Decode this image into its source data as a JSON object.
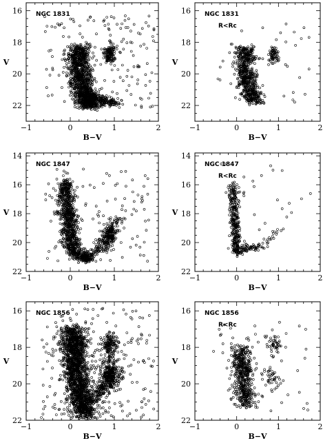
{
  "chart_data": [
    {
      "type": "scatter",
      "labels": [
        "NGC 1831"
      ],
      "xlabel": "B−V",
      "ylabel": "V",
      "xlim": [
        -1,
        2
      ],
      "ylim": [
        23,
        15.5
      ],
      "y_inverted": true,
      "xticks": [
        -1,
        0,
        1,
        2
      ],
      "yticks": [
        16,
        18,
        20,
        22
      ],
      "grid": false,
      "components": [
        {
          "kind": "band",
          "points": [
            [
              0.2,
              18.3
            ],
            [
              0.18,
              19.0
            ],
            [
              0.2,
              19.8
            ],
            [
              0.25,
              20.5
            ],
            [
              0.32,
              21.2
            ],
            [
              0.4,
              21.8
            ],
            [
              0.48,
              22.1
            ]
          ],
          "width": 0.13,
          "n": 1200
        },
        {
          "kind": "band",
          "points": [
            [
              0.3,
              21.3
            ],
            [
              0.55,
              21.5
            ],
            [
              0.8,
              21.7
            ],
            [
              1.05,
              21.9
            ]
          ],
          "width": 0.09,
          "n": 200
        },
        {
          "kind": "clump",
          "center": [
            0.9,
            18.75
          ],
          "spread": [
            0.07,
            0.3
          ],
          "n": 130
        },
        {
          "kind": "field",
          "xr": [
            -0.6,
            1.9
          ],
          "yr": [
            16.3,
            22.2
          ],
          "n": 160
        }
      ]
    },
    {
      "type": "scatter",
      "labels": [
        "NGC 1831",
        "R<Rc"
      ],
      "xlabel": "B−V",
      "ylabel": "V",
      "xlim": [
        -1,
        2
      ],
      "ylim": [
        23,
        15.5
      ],
      "y_inverted": true,
      "xticks": [
        -1,
        0,
        1,
        2
      ],
      "yticks": [
        16,
        18,
        20,
        22
      ],
      "grid": false,
      "components": [
        {
          "kind": "band",
          "points": [
            [
              0.2,
              18.3
            ],
            [
              0.18,
              19.0
            ],
            [
              0.2,
              19.8
            ],
            [
              0.26,
              20.5
            ],
            [
              0.33,
              21.2
            ],
            [
              0.42,
              21.8
            ]
          ],
          "width": 0.12,
          "n": 650
        },
        {
          "kind": "clump",
          "center": [
            0.88,
            18.8
          ],
          "spread": [
            0.06,
            0.28
          ],
          "n": 65
        },
        {
          "kind": "field",
          "xr": [
            -0.5,
            1.8
          ],
          "yr": [
            16.8,
            22.0
          ],
          "n": 45
        }
      ]
    },
    {
      "type": "scatter",
      "labels": [
        "NGC 1847"
      ],
      "xlabel": "B−V",
      "ylabel": "V",
      "xlim": [
        -1,
        2
      ],
      "ylim": [
        22,
        13.8
      ],
      "y_inverted": true,
      "xticks": [
        -1,
        0,
        1,
        2
      ],
      "yticks": [
        14,
        16,
        18,
        20,
        22
      ],
      "grid": false,
      "components": [
        {
          "kind": "band",
          "points": [
            [
              -0.1,
              15.8
            ],
            [
              -0.08,
              16.8
            ],
            [
              -0.05,
              17.8
            ],
            [
              -0.02,
              18.6
            ],
            [
              0.0,
              19.5
            ],
            [
              0.05,
              20.3
            ],
            [
              0.2,
              20.9
            ],
            [
              0.45,
              21.2
            ]
          ],
          "width": 0.1,
          "n": 950
        },
        {
          "kind": "band",
          "points": [
            [
              0.35,
              20.9
            ],
            [
              0.6,
              20.6
            ],
            [
              0.75,
              20.2
            ],
            [
              0.85,
              19.6
            ],
            [
              0.95,
              19.0
            ],
            [
              1.1,
              18.3
            ]
          ],
          "width": 0.09,
          "n": 200
        },
        {
          "kind": "clump",
          "center": [
            0.88,
            19.5
          ],
          "spread": [
            0.09,
            0.35
          ],
          "n": 110
        },
        {
          "kind": "field",
          "xr": [
            -0.6,
            1.8
          ],
          "yr": [
            14.8,
            21.4
          ],
          "n": 110
        }
      ]
    },
    {
      "type": "scatter",
      "labels": [
        "NGC 1847",
        "R<Rc"
      ],
      "xlabel": "B−V",
      "ylabel": "V",
      "xlim": [
        -1,
        2
      ],
      "ylim": [
        22,
        13.8
      ],
      "y_inverted": true,
      "xticks": [
        -1,
        0,
        1,
        2
      ],
      "yticks": [
        14,
        16,
        18,
        20,
        22
      ],
      "grid": false,
      "components": [
        {
          "kind": "band",
          "points": [
            [
              -0.1,
              15.9
            ],
            [
              -0.08,
              16.8
            ],
            [
              -0.06,
              17.8
            ],
            [
              -0.04,
              18.6
            ],
            [
              -0.02,
              19.4
            ],
            [
              0.0,
              20.2
            ],
            [
              0.05,
              20.9
            ]
          ],
          "width": 0.06,
          "n": 330
        },
        {
          "kind": "band",
          "points": [
            [
              0.05,
              20.5
            ],
            [
              0.3,
              20.3
            ],
            [
              0.5,
              20.4
            ]
          ],
          "width": 0.09,
          "n": 60
        },
        {
          "kind": "band",
          "points": [
            [
              0.55,
              20.2
            ],
            [
              0.75,
              19.8
            ],
            [
              0.9,
              19.3
            ],
            [
              1.05,
              18.8
            ]
          ],
          "width": 0.06,
          "n": 25
        },
        {
          "kind": "field",
          "xr": [
            -0.4,
            1.8
          ],
          "yr": [
            14.5,
            21.0
          ],
          "n": 25
        }
      ]
    },
    {
      "type": "scatter",
      "labels": [
        "NGC 1856"
      ],
      "xlabel": "B−V",
      "ylabel": "V",
      "xlim": [
        -1,
        2
      ],
      "ylim": [
        22,
        15.5
      ],
      "y_inverted": true,
      "xticks": [
        -1,
        0,
        1,
        2
      ],
      "yticks": [
        16,
        18,
        20,
        22
      ],
      "grid": false,
      "components": [
        {
          "kind": "band",
          "points": [
            [
              0.05,
              16.9
            ],
            [
              0.08,
              17.6
            ],
            [
              0.1,
              18.3
            ],
            [
              0.12,
              19.0
            ],
            [
              0.15,
              19.7
            ],
            [
              0.2,
              20.4
            ],
            [
              0.28,
              21.1
            ],
            [
              0.35,
              21.8
            ]
          ],
          "width": 0.14,
          "n": 1800
        },
        {
          "kind": "clump",
          "center": [
            0.9,
            17.8
          ],
          "spread": [
            0.09,
            0.3
          ],
          "n": 150
        },
        {
          "kind": "clump",
          "center": [
            0.9,
            19.4
          ],
          "spread": [
            0.11,
            0.45
          ],
          "n": 250
        },
        {
          "kind": "band",
          "points": [
            [
              0.4,
              21.0
            ],
            [
              0.65,
              20.6
            ],
            [
              0.8,
              20.1
            ],
            [
              0.95,
              19.5
            ]
          ],
          "width": 0.1,
          "n": 200
        },
        {
          "kind": "field",
          "xr": [
            -0.7,
            1.9
          ],
          "yr": [
            15.8,
            21.9
          ],
          "n": 240
        }
      ]
    },
    {
      "type": "scatter",
      "labels": [
        "NGC 1856",
        "R<Rc"
      ],
      "xlabel": "B−V",
      "ylabel": "V",
      "xlim": [
        -1,
        2
      ],
      "ylim": [
        22,
        15.5
      ],
      "y_inverted": true,
      "xticks": [
        -1,
        0,
        1,
        2
      ],
      "yticks": [
        16,
        18,
        20,
        22
      ],
      "grid": false,
      "components": [
        {
          "kind": "band",
          "points": [
            [
              0.1,
              18.0
            ],
            [
              0.1,
              18.7
            ],
            [
              0.12,
              19.3
            ],
            [
              0.15,
              20.0
            ],
            [
              0.2,
              20.6
            ],
            [
              0.25,
              21.2
            ]
          ],
          "width": 0.12,
          "n": 520
        },
        {
          "kind": "clump",
          "center": [
            0.9,
            17.8
          ],
          "spread": [
            0.07,
            0.25
          ],
          "n": 45
        },
        {
          "kind": "clump",
          "center": [
            0.85,
            19.6
          ],
          "spread": [
            0.12,
            0.4
          ],
          "n": 40
        },
        {
          "kind": "field",
          "xr": [
            -0.6,
            1.8
          ],
          "yr": [
            16.6,
            21.6
          ],
          "n": 55
        }
      ]
    }
  ]
}
